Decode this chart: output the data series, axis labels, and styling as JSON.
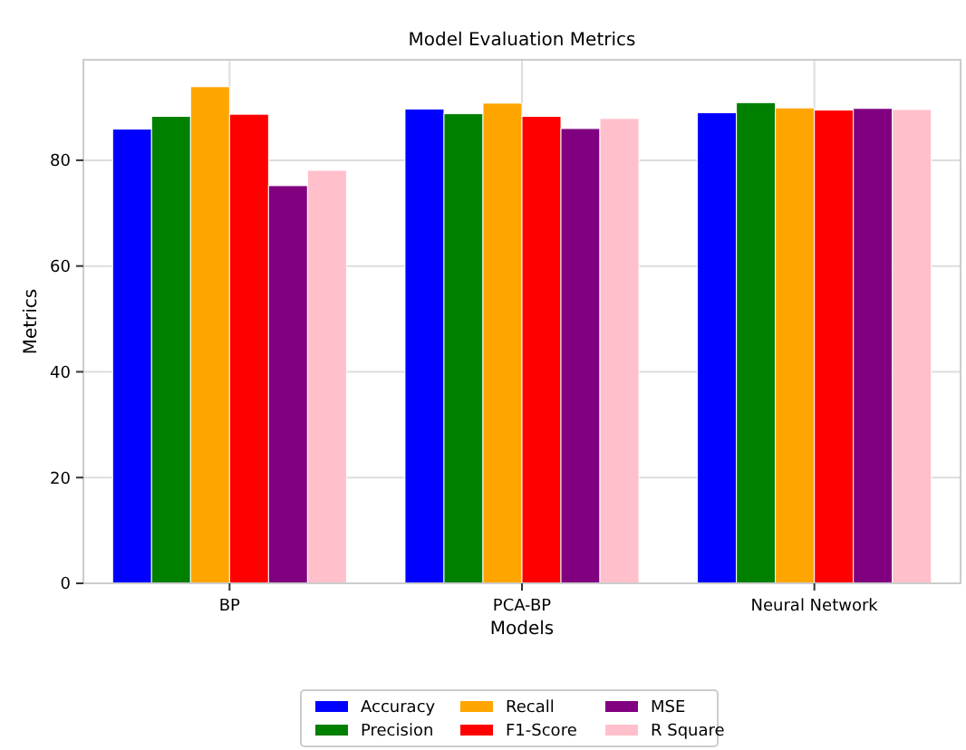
{
  "chart_data": {
    "type": "bar",
    "title": "Model Evaluation Metrics",
    "xlabel": "Models",
    "ylabel": "Metrics",
    "categories": [
      "BP",
      "PCA-BP",
      "Neural Network"
    ],
    "series": [
      {
        "name": "Accuracy",
        "color": "#0000ff",
        "values": [
          85.9,
          89.7,
          89.0
        ]
      },
      {
        "name": "Precision",
        "color": "#008000",
        "values": [
          88.3,
          88.8,
          90.9
        ]
      },
      {
        "name": "Recall",
        "color": "#ffa500",
        "values": [
          93.9,
          90.8,
          89.9
        ]
      },
      {
        "name": "F1-Score",
        "color": "#ff0000",
        "values": [
          88.7,
          88.3,
          89.5
        ]
      },
      {
        "name": "MSE",
        "color": "#800080",
        "values": [
          75.2,
          86.0,
          89.8
        ]
      },
      {
        "name": "R Square",
        "color": "#ffc0cb",
        "values": [
          78.1,
          87.9,
          89.6
        ]
      }
    ],
    "ylim": [
      0,
      99
    ],
    "yticks": [
      0,
      20,
      40,
      60,
      80
    ],
    "grid": true,
    "legend": "bottom"
  }
}
